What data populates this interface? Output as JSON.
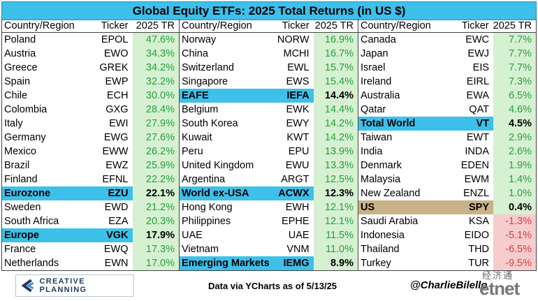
{
  "title": "Global Equity ETFs: 2025 Total Returns (in US $)",
  "headers": {
    "country": "Country/Region",
    "ticker": "Ticker",
    "ret": "2025 TR"
  },
  "columns": [
    [
      {
        "country": "Poland",
        "ticker": "EPOL",
        "ret": "47.6%",
        "sign": "pos"
      },
      {
        "country": "Austria",
        "ticker": "EWO",
        "ret": "34.3%",
        "sign": "pos"
      },
      {
        "country": "Greece",
        "ticker": "GREK",
        "ret": "34.2%",
        "sign": "pos"
      },
      {
        "country": "Spain",
        "ticker": "EWP",
        "ret": "32.2%",
        "sign": "pos"
      },
      {
        "country": "Chile",
        "ticker": "ECH",
        "ret": "30.0%",
        "sign": "pos"
      },
      {
        "country": "Colombia",
        "ticker": "GXG",
        "ret": "28.4%",
        "sign": "pos"
      },
      {
        "country": "Italy",
        "ticker": "EWI",
        "ret": "27.9%",
        "sign": "pos"
      },
      {
        "country": "Germany",
        "ticker": "EWG",
        "ret": "27.6%",
        "sign": "pos"
      },
      {
        "country": "Mexico",
        "ticker": "EWW",
        "ret": "26.2%",
        "sign": "pos"
      },
      {
        "country": "Brazil",
        "ticker": "EWZ",
        "ret": "25.9%",
        "sign": "pos"
      },
      {
        "country": "Finland",
        "ticker": "EFNL",
        "ret": "22.2%",
        "sign": "pos"
      },
      {
        "country": "Eurozone",
        "ticker": "EZU",
        "ret": "22.1%",
        "sign": "pos",
        "hl": "blue"
      },
      {
        "country": "Sweden",
        "ticker": "EWD",
        "ret": "21.2%",
        "sign": "pos"
      },
      {
        "country": "South Africa",
        "ticker": "EZA",
        "ret": "20.3%",
        "sign": "pos"
      },
      {
        "country": "Europe",
        "ticker": "VGK",
        "ret": "17.9%",
        "sign": "pos",
        "hl": "blue"
      },
      {
        "country": "France",
        "ticker": "EWQ",
        "ret": "17.3%",
        "sign": "pos"
      },
      {
        "country": "Netherlands",
        "ticker": "EWN",
        "ret": "17.0%",
        "sign": "pos"
      }
    ],
    [
      {
        "country": "Norway",
        "ticker": "NORW",
        "ret": "16.9%",
        "sign": "pos"
      },
      {
        "country": "China",
        "ticker": "MCHI",
        "ret": "16.7%",
        "sign": "pos"
      },
      {
        "country": "Switzerland",
        "ticker": "EWL",
        "ret": "15.7%",
        "sign": "pos"
      },
      {
        "country": "Singapore",
        "ticker": "EWS",
        "ret": "15.4%",
        "sign": "pos"
      },
      {
        "country": "EAFE",
        "ticker": "IEFA",
        "ret": "14.4%",
        "sign": "pos",
        "hl": "blue"
      },
      {
        "country": "Belgium",
        "ticker": "EWK",
        "ret": "14.4%",
        "sign": "pos"
      },
      {
        "country": "South Korea",
        "ticker": "EWY",
        "ret": "14.2%",
        "sign": "pos"
      },
      {
        "country": "Kuwait",
        "ticker": "KWT",
        "ret": "14.2%",
        "sign": "pos"
      },
      {
        "country": "Peru",
        "ticker": "EPU",
        "ret": "13.9%",
        "sign": "pos"
      },
      {
        "country": "United Kingdom",
        "ticker": "EWU",
        "ret": "13.3%",
        "sign": "pos"
      },
      {
        "country": "Argentina",
        "ticker": "ARGT",
        "ret": "12.5%",
        "sign": "pos"
      },
      {
        "country": "World ex-USA",
        "ticker": "ACWX",
        "ret": "12.3%",
        "sign": "pos",
        "hl": "blue"
      },
      {
        "country": "Hong Kong",
        "ticker": "EWH",
        "ret": "12.1%",
        "sign": "pos"
      },
      {
        "country": "Philippines",
        "ticker": "EPHE",
        "ret": "12.1%",
        "sign": "pos"
      },
      {
        "country": "UAE",
        "ticker": "UAE",
        "ret": "11.5%",
        "sign": "pos"
      },
      {
        "country": "Vietnam",
        "ticker": "VNM",
        "ret": "11.0%",
        "sign": "pos"
      },
      {
        "country": "Emerging Markets",
        "ticker": "IEMG",
        "ret": "8.9%",
        "sign": "pos",
        "hl": "blue"
      }
    ],
    [
      {
        "country": "Canada",
        "ticker": "EWC",
        "ret": "7.7%",
        "sign": "pos"
      },
      {
        "country": "Japan",
        "ticker": "EWJ",
        "ret": "7.7%",
        "sign": "pos"
      },
      {
        "country": "Israel",
        "ticker": "EIS",
        "ret": "7.7%",
        "sign": "pos"
      },
      {
        "country": "Ireland",
        "ticker": "EIRL",
        "ret": "7.3%",
        "sign": "pos"
      },
      {
        "country": "Australia",
        "ticker": "EWA",
        "ret": "6.5%",
        "sign": "pos"
      },
      {
        "country": "Qatar",
        "ticker": "QAT",
        "ret": "4.6%",
        "sign": "pos"
      },
      {
        "country": "Total World",
        "ticker": "VT",
        "ret": "4.5%",
        "sign": "pos",
        "hl": "blue"
      },
      {
        "country": "Taiwan",
        "ticker": "EWT",
        "ret": "2.9%",
        "sign": "pos"
      },
      {
        "country": "India",
        "ticker": "INDA",
        "ret": "2.6%",
        "sign": "pos"
      },
      {
        "country": "Denmark",
        "ticker": "EDEN",
        "ret": "1.9%",
        "sign": "pos"
      },
      {
        "country": "Malaysia",
        "ticker": "EWM",
        "ret": "1.4%",
        "sign": "pos"
      },
      {
        "country": "New Zealand",
        "ticker": "ENZL",
        "ret": "1.0%",
        "sign": "pos"
      },
      {
        "country": "US",
        "ticker": "SPY",
        "ret": "0.4%",
        "sign": "pos",
        "hl": "tan"
      },
      {
        "country": "Saudi Arabia",
        "ticker": "KSA",
        "ret": "-1.3%",
        "sign": "neg"
      },
      {
        "country": "Indonesia",
        "ticker": "EIDO",
        "ret": "-5.1%",
        "sign": "neg"
      },
      {
        "country": "Thailand",
        "ticker": "THD",
        "ret": "-6.5%",
        "sign": "neg"
      },
      {
        "country": "Turkey",
        "ticker": "TUR",
        "ret": "-9.5%",
        "sign": "neg"
      }
    ]
  ],
  "footer": {
    "logo_text": "CREATIVE PLANNING",
    "source": "Data via YCharts as of 5/13/25",
    "handle": "@CharlieBilello",
    "watermark_cn": "经济通",
    "watermark_en": "etnet"
  },
  "colors": {
    "highlight_blue": "#3dc0ea",
    "highlight_tan": "#c9b287",
    "positive_bg": "#d6f0d2",
    "positive_text": "#27a23a",
    "negative_bg": "#f6cccc",
    "negative_text": "#d94040"
  }
}
